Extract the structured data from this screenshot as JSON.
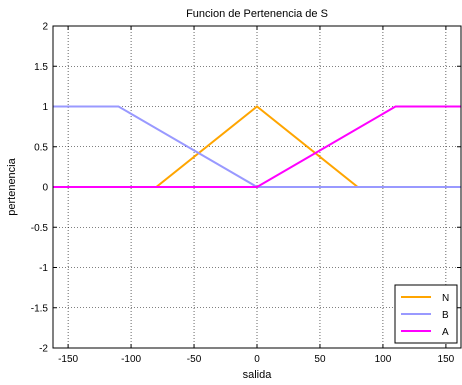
{
  "chart_data": {
    "type": "line",
    "title": "Funcion de Pertenencia de S",
    "xlabel": "salida",
    "ylabel": "pertenencia",
    "xlim": [
      -162,
      162
    ],
    "ylim": [
      -2,
      2
    ],
    "xticks": [
      -150,
      -100,
      -50,
      0,
      50,
      100,
      150
    ],
    "xtick_labels": [
      "-150",
      "-100",
      "-50",
      "0",
      "50",
      "100",
      "150"
    ],
    "yticks": [
      -2,
      -1.5,
      -1,
      -0.5,
      0,
      0.5,
      1,
      1.5,
      2
    ],
    "ytick_labels": [
      "-2",
      "-1.5",
      "-1",
      "-0.5",
      "0",
      "0.5",
      "1",
      "1.5",
      "2"
    ],
    "grid": true,
    "legend_position": "bottom-right",
    "series": [
      {
        "name": "N",
        "color": "#ffa500",
        "x": [
          -162,
          -80,
          0,
          80,
          162
        ],
        "y": [
          0,
          0,
          1,
          0,
          0
        ]
      },
      {
        "name": "B",
        "color": "#9999ff",
        "x": [
          -162,
          -110,
          0,
          162
        ],
        "y": [
          1,
          1,
          0,
          0
        ]
      },
      {
        "name": "A",
        "color": "#ff00ff",
        "x": [
          -162,
          0,
          110,
          162
        ],
        "y": [
          0,
          0,
          1,
          1
        ]
      }
    ]
  }
}
